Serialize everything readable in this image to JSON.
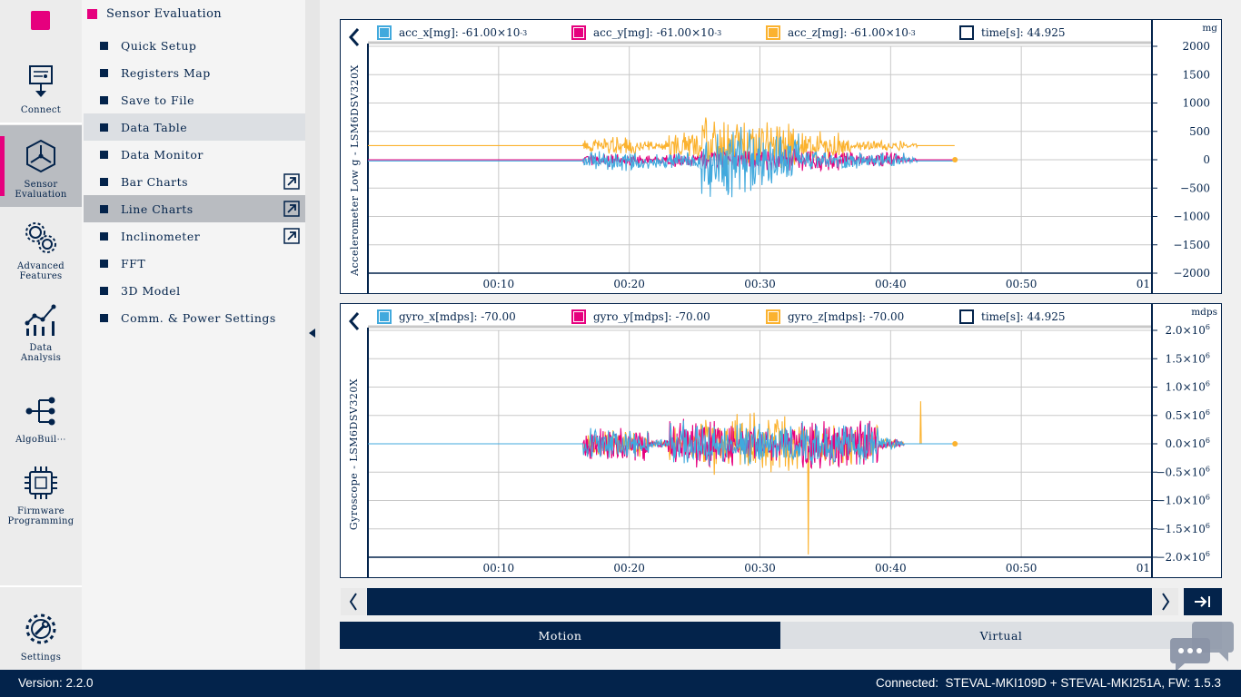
{
  "rail": {
    "items": [
      {
        "label": "Connect",
        "icon": "connect-icon"
      },
      {
        "label": "Sensor\nEvaluation",
        "icon": "sensor-evaluation-icon"
      },
      {
        "label": "Advanced\nFeatures",
        "icon": "gears-icon"
      },
      {
        "label": "Data\nAnalysis",
        "icon": "data-analysis-icon"
      },
      {
        "label": "AlgoBuil⋯",
        "icon": "algobuilder-icon"
      },
      {
        "label": "Firmware\nProgramming",
        "icon": "chip-icon"
      },
      {
        "label": "Settings",
        "icon": "settings-icon"
      }
    ]
  },
  "nav": {
    "title": "Sensor Evaluation",
    "items": [
      {
        "label": "Quick Setup"
      },
      {
        "label": "Registers Map"
      },
      {
        "label": "Save to File"
      },
      {
        "label": "Data Table"
      },
      {
        "label": "Data Monitor"
      },
      {
        "label": "Bar Charts"
      },
      {
        "label": "Line Charts"
      },
      {
        "label": "Inclinometer"
      },
      {
        "label": "FFT"
      },
      {
        "label": "3D Model"
      },
      {
        "label": "Comm. & Power Settings"
      }
    ]
  },
  "colors": {
    "x": "#41a9dd",
    "y": "#e6007e",
    "z": "#fbb22e",
    "time": "#03234b",
    "navy": "#03234b",
    "grid": "#c8c8c8"
  },
  "chart_data": [
    {
      "type": "line",
      "title": "Accelerometer Low g - LSM6DSV320X",
      "ylabel": "Accelerometer Low g - LSM6DSV320X",
      "unit": "mg",
      "ylim": [
        -2000,
        2000
      ],
      "y_ticks": [
        2000,
        1500,
        1000,
        500,
        0,
        -500,
        -1000,
        -1500,
        -2000
      ],
      "y_tick_labels": [
        "2000",
        "1500",
        "1000",
        "500",
        "0",
        "−500",
        "−1000",
        "−1500",
        "−2000"
      ],
      "x_tick_labels": [
        "00:10",
        "00:20",
        "00:30",
        "00:40",
        "00:50",
        "01"
      ],
      "xlim": [
        0,
        60
      ],
      "legend": [
        {
          "key": "x",
          "text": "acc_x[mg]: -61.00×10",
          "sup": "-3"
        },
        {
          "key": "y",
          "text": "acc_y[mg]: -61.00×10",
          "sup": "-3"
        },
        {
          "key": "z",
          "text": "acc_z[mg]: -61.00×10",
          "sup": "-3"
        },
        {
          "key": "time",
          "text": "time[s]: 44.925",
          "sup": ""
        }
      ],
      "series": [
        {
          "name": "acc_x",
          "key": "x",
          "base": -20,
          "segments": [
            [
              16.5,
              20.5,
              180
            ],
            [
              20.5,
              23,
              140
            ],
            [
              23,
              25.5,
              170
            ],
            [
              25.5,
              29.5,
              650
            ],
            [
              29.5,
              33,
              500
            ],
            [
              33,
              37,
              180
            ],
            [
              37,
              41,
              150
            ],
            [
              41,
              42,
              60
            ]
          ]
        },
        {
          "name": "acc_y",
          "key": "y",
          "base": 0,
          "segments": [
            [
              16.5,
              20.5,
              120
            ],
            [
              20.5,
              23,
              80
            ],
            [
              23,
              25.5,
              130
            ],
            [
              25.5,
              29.5,
              180
            ],
            [
              29.5,
              33,
              200
            ],
            [
              33,
              37,
              200
            ],
            [
              37,
              41,
              130
            ],
            [
              41,
              42,
              40
            ]
          ]
        },
        {
          "name": "acc_z",
          "key": "z",
          "base": 250,
          "segments": [
            [
              16.5,
              20.5,
              160
            ],
            [
              20.5,
              23,
              90
            ],
            [
              23,
              25.5,
              250
            ],
            [
              25.5,
              29.5,
              500
            ],
            [
              29.5,
              33,
              440
            ],
            [
              33,
              37,
              260
            ],
            [
              37,
              41,
              90
            ],
            [
              41,
              42,
              40
            ]
          ]
        }
      ],
      "end_time": 44.925
    },
    {
      "type": "line",
      "title": "Gyroscope - LSM6DSV320X",
      "ylabel": "Gyroscope - LSM6DSV320X",
      "unit": "mdps",
      "ylim": [
        -2.0,
        2.0
      ],
      "y_ticks": [
        2.0,
        1.5,
        1.0,
        0.5,
        0.0,
        -0.5,
        -1.0,
        -1.5,
        -2.0
      ],
      "y_tick_labels": [
        "2.0×10",
        "1.5×10",
        "1.0×10",
        "0.5×10",
        "0.0×10",
        "−0.5×10",
        "−1.0×10",
        "−1.5×10",
        "−2.0×10"
      ],
      "y_tick_sup": "6",
      "x_tick_labels": [
        "00:10",
        "00:20",
        "00:30",
        "00:40",
        "00:50",
        "01"
      ],
      "xlim": [
        0,
        60
      ],
      "legend": [
        {
          "key": "x",
          "text": "gyro_x[mdps]: -70.00",
          "sup": ""
        },
        {
          "key": "y",
          "text": "gyro_y[mdps]: -70.00",
          "sup": ""
        },
        {
          "key": "z",
          "text": "gyro_z[mdps]: -70.00",
          "sup": ""
        },
        {
          "key": "time",
          "text": "time[s]: 44.925",
          "sup": ""
        }
      ],
      "series": [
        {
          "name": "gyro_x",
          "key": "x",
          "base": 0,
          "segments": [
            [
              16.5,
              21.5,
              0.3
            ],
            [
              21.5,
              23,
              0.08
            ],
            [
              23,
              28,
              0.42
            ],
            [
              28,
              33,
              0.38
            ],
            [
              33,
              39,
              0.4
            ],
            [
              39,
              40.5,
              0.12
            ],
            [
              40.5,
              41,
              0.05
            ]
          ]
        },
        {
          "name": "gyro_y",
          "key": "y",
          "base": 0,
          "segments": [
            [
              16.5,
              21.5,
              0.32
            ],
            [
              21.5,
              23,
              0.08
            ],
            [
              23,
              28,
              0.45
            ],
            [
              28,
              33,
              0.3
            ],
            [
              33,
              39,
              0.45
            ],
            [
              39,
              40.5,
              0.1
            ],
            [
              40.5,
              41,
              0.05
            ]
          ]
        },
        {
          "name": "gyro_z",
          "key": "z",
          "base": 0,
          "segments": [
            [
              16.5,
              21.5,
              0.25
            ],
            [
              21.5,
              23,
              0.05
            ],
            [
              23,
              25.5,
              0.3
            ],
            [
              25.5,
              33,
              0.55
            ],
            [
              33,
              39,
              0.38
            ],
            [
              39,
              40.5,
              0.1
            ],
            [
              40.5,
              41,
              0.05
            ]
          ],
          "spikes": [
            [
              33.7,
              -1.95
            ],
            [
              42.3,
              0.75
            ]
          ]
        }
      ],
      "end_time": 44.925
    }
  ],
  "tabs": [
    {
      "label": "Motion"
    },
    {
      "label": "Virtual"
    }
  ],
  "status": {
    "version": "Version: 2.2.0",
    "connection": "Connected:  STEVAL-MKI109D + STEVAL-MKI251A, FW: 1.5.3"
  }
}
